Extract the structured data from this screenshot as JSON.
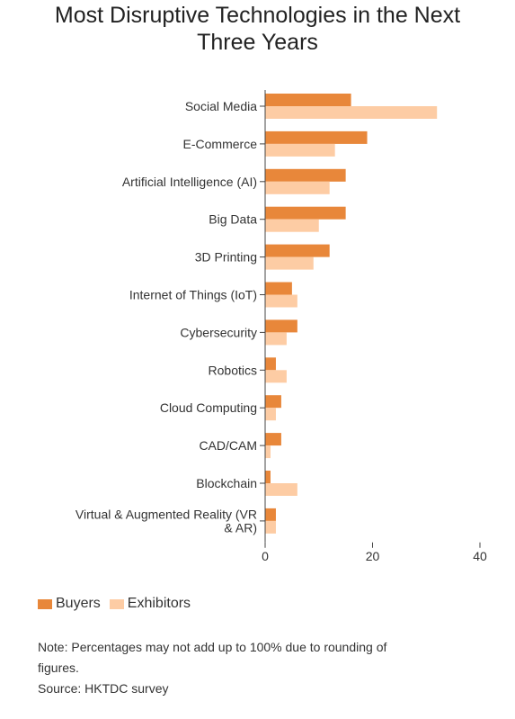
{
  "title_lines": [
    "Most Disruptive Technologies in the Next",
    "Three Years"
  ],
  "colors": {
    "buyers": "#e8873a",
    "exhibitors": "#fdcca4",
    "axis": "#444444",
    "grid": "#e5e5e5"
  },
  "chart_data": {
    "type": "bar",
    "orientation": "horizontal",
    "title": "Most Disruptive Technologies in the Next Three Years",
    "categories": [
      [
        "Social Media"
      ],
      [
        "E-Commerce"
      ],
      [
        "Artificial Intelligence (AI)"
      ],
      [
        "Big Data"
      ],
      [
        "3D Printing"
      ],
      [
        "Internet of Things (IoT)"
      ],
      [
        "Cybersecurity"
      ],
      [
        "Robotics"
      ],
      [
        "Cloud Computing"
      ],
      [
        "CAD/CAM"
      ],
      [
        "Blockchain"
      ],
      [
        "Virtual & Augmented Reality (VR",
        "& AR)"
      ]
    ],
    "series": [
      {
        "name": "Buyers",
        "values": [
          16,
          19,
          15,
          15,
          12,
          5,
          6,
          2,
          3,
          3,
          1,
          2
        ]
      },
      {
        "name": "Exhibitors",
        "values": [
          32,
          13,
          12,
          10,
          9,
          6,
          4,
          4,
          2,
          1,
          6,
          2
        ]
      }
    ],
    "xlim": [
      0,
      40
    ],
    "xticks": [
      0,
      20,
      40
    ],
    "xlabel": "",
    "ylabel": "",
    "legend_position": "bottom-left",
    "grid": false
  },
  "note_lines": [
    "Note: Percentages may not add up to 100% due to rounding of",
    "figures.",
    "Source: HKTDC survey"
  ]
}
